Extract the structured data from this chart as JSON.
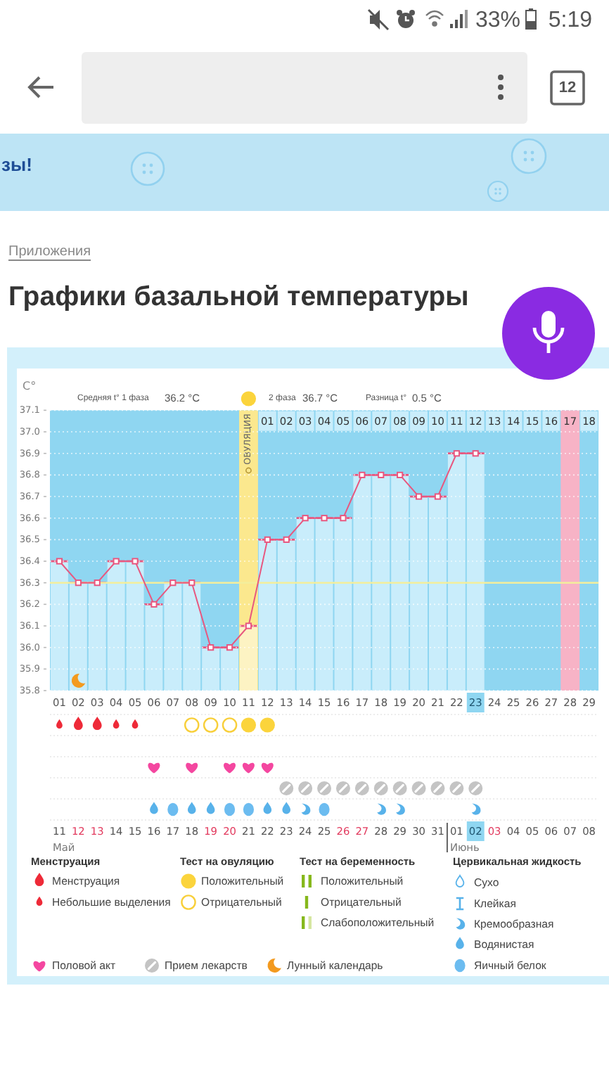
{
  "chart_data": {
    "type": "bar",
    "title": "Графики базальной температуры",
    "ylabel": "C°",
    "x": [
      1,
      2,
      3,
      4,
      5,
      6,
      7,
      8,
      9,
      10,
      11,
      12,
      13,
      14,
      15,
      16,
      17,
      18,
      19,
      20,
      21,
      22,
      23
    ],
    "series": [
      {
        "colors": [
          "#c9edfb",
          "#c9edfb",
          "#c9edfb",
          "#c9edfb",
          "#c9edfb",
          "#c9edfb",
          "#c9edfb",
          "#c9edfb",
          "#c9edfb",
          "#c9edfb",
          "#fdf3c3",
          "#c9edfb",
          "#c9edfb",
          "#c9edfb",
          "#c9edfb",
          "#c9edfb",
          "#c9edfb",
          "#c9edfb",
          "#c9edfb",
          "#c9edfb",
          "#c9edfb",
          "#c9edfb",
          "#c9edfb"
        ],
        "values": [
          36.4,
          36.3,
          36.3,
          36.4,
          36.4,
          36.2,
          36.3,
          36.3,
          36.0,
          36.0,
          36.1,
          36.5,
          36.5,
          36.6,
          36.6,
          36.6,
          36.8,
          36.8,
          36.8,
          36.7,
          36.7,
          36.9,
          36.9
        ]
      },
      {
        "type": "line",
        "color": "#e8577f",
        "values": [
          36.4,
          36.3,
          36.3,
          36.4,
          36.4,
          36.2,
          36.3,
          36.3,
          36.0,
          36.0,
          36.1,
          36.5,
          36.5,
          36.6,
          36.6,
          36.6,
          36.8,
          36.8,
          36.8,
          36.7,
          36.7,
          36.9,
          36.9
        ]
      }
    ],
    "marker": "square",
    "xlim": [
      0.5,
      29.5
    ],
    "xticks": [
      {
        "value": 1,
        "label": "01"
      },
      {
        "value": 2,
        "label": "02"
      },
      {
        "value": 3,
        "label": "03"
      },
      {
        "value": 4,
        "label": "04"
      },
      {
        "value": 5,
        "label": "05"
      },
      {
        "value": 6,
        "label": "06"
      },
      {
        "value": 7,
        "label": "07"
      },
      {
        "value": 8,
        "label": "08"
      },
      {
        "value": 9,
        "label": "09"
      },
      10,
      11,
      12,
      13,
      14,
      15,
      16,
      17,
      18,
      19,
      20,
      21,
      22,
      23,
      24,
      25,
      26,
      27,
      28,
      29
    ],
    "ylim": [
      35.8,
      37.1
    ],
    "yticks": [
      35.8,
      35.9,
      {
        "value": 36,
        "label": "36.0"
      },
      36.1,
      36.2,
      36.3,
      36.4,
      36.5,
      36.6,
      36.7,
      36.8,
      36.9,
      {
        "value": 37,
        "label": "37.0"
      },
      37.1
    ],
    "grid": "y",
    "ref_lines": [
      {
        "axis": "y",
        "value": 36.3,
        "color": "#f3ee9c"
      }
    ],
    "bands": [
      {
        "axis": "x",
        "from": 10.5,
        "to": 11.5,
        "label": "ОВУЛЯЦИЯ",
        "color": "#fbe88e"
      },
      {
        "axis": "x",
        "from": 27.5,
        "to": 28.5,
        "color": "#f7b3c6"
      }
    ],
    "annotations": [
      "33%",
      "5:19",
      "12",
      "зы!",
      "Приложения",
      "Средняя t° 1 фаза",
      "36.2 °C",
      "2 фаза",
      "36.7 °C",
      "Разница t°",
      "0.5 °C",
      "Менструация",
      "Менструация",
      "Небольшие выделения",
      "Тест на овуляцию",
      "Положительный",
      "Отрицательный",
      "Тест на беременность",
      "Положительный",
      "Отрицательный",
      "Слабоположительный",
      "Цервикальная жидкость",
      "Сухо",
      "Клейкая",
      "Кремообразная",
      "Водянистая",
      "Яичный белок",
      "Половой акт",
      "Прием лекарств",
      "Лунный календарь",
      {
        "text": "01",
        "x": 12,
        "y": 37.05
      },
      {
        "text": "02",
        "x": 13,
        "y": 37.05
      },
      {
        "text": "03",
        "x": 14,
        "y": 37.05
      },
      {
        "text": "04",
        "x": 15,
        "y": 37.05
      },
      {
        "text": "05",
        "x": 16,
        "y": 37.05
      },
      {
        "text": "06",
        "x": 17,
        "y": 37.05
      },
      {
        "text": "07",
        "x": 18,
        "y": 37.05
      },
      {
        "text": "08",
        "x": 19,
        "y": 37.05
      },
      {
        "text": "09",
        "x": 20,
        "y": 37.05
      },
      {
        "text": "10",
        "x": 21,
        "y": 37.05
      },
      {
        "text": "11",
        "x": 22,
        "y": 37.05
      },
      {
        "text": "12",
        "x": 23,
        "y": 37.05
      },
      {
        "text": "13",
        "x": 24,
        "y": 37.05
      },
      {
        "text": "14",
        "x": 25,
        "y": 37.05
      },
      {
        "text": "15",
        "x": 26,
        "y": 37.05
      },
      {
        "text": "16",
        "x": 27,
        "y": 37.05
      },
      {
        "text": "17",
        "x": 28,
        "y": 37.05
      },
      {
        "text": "18",
        "x": 29,
        "y": 37.05
      },
      "11",
      "12",
      "13",
      "14",
      "15",
      "16",
      "17",
      "18",
      "19",
      "20",
      "21",
      "22",
      "23",
      "24",
      "25",
      "26",
      "27",
      "28",
      "29",
      "30",
      "31",
      "01",
      "02",
      "03",
      "04",
      "05",
      "06",
      "07",
      "08",
      "Май",
      "Июнь"
    ]
  }
}
